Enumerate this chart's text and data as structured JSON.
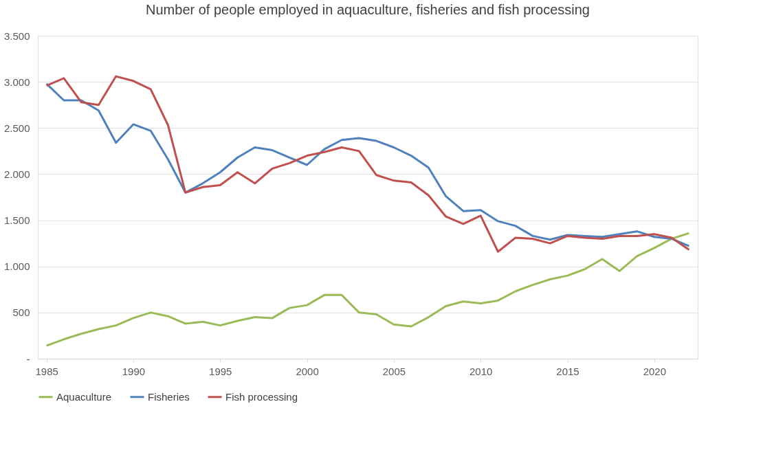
{
  "chart_data": {
    "type": "line",
    "title": "Number of people employed in aquaculture, fisheries and fish processing",
    "x": [
      1985,
      1986,
      1987,
      1988,
      1989,
      1990,
      1991,
      1992,
      1993,
      1994,
      1995,
      1996,
      1997,
      1998,
      1999,
      2000,
      2001,
      2002,
      2003,
      2004,
      2005,
      2006,
      2007,
      2008,
      2009,
      2010,
      2011,
      2012,
      2013,
      2014,
      2015,
      2016,
      2017,
      2018,
      2019,
      2020,
      2021,
      2022
    ],
    "series": [
      {
        "name": "Aquaculture",
        "color": "#9bbb59",
        "values": [
          140,
          210,
          270,
          320,
          360,
          440,
          500,
          460,
          380,
          400,
          360,
          410,
          450,
          440,
          550,
          580,
          690,
          690,
          500,
          480,
          370,
          350,
          450,
          570,
          620,
          600,
          630,
          730,
          800,
          860,
          900,
          970,
          1080,
          950,
          1110,
          1200,
          1300,
          1360
        ]
      },
      {
        "name": "Fisheries",
        "color": "#4f81bd",
        "values": [
          2980,
          2800,
          2800,
          2690,
          2340,
          2540,
          2470,
          2160,
          1800,
          1900,
          2020,
          2180,
          2290,
          2260,
          2180,
          2100,
          2270,
          2370,
          2390,
          2360,
          2290,
          2200,
          2070,
          1760,
          1600,
          1610,
          1490,
          1440,
          1330,
          1290,
          1340,
          1330,
          1320,
          1350,
          1380,
          1320,
          1300,
          1220
        ]
      },
      {
        "name": "Fish processing",
        "color": "#c0504d",
        "values": [
          2960,
          3040,
          2780,
          2750,
          3060,
          3010,
          2920,
          2530,
          1800,
          1860,
          1880,
          2020,
          1900,
          2060,
          2120,
          2200,
          2240,
          2290,
          2250,
          1990,
          1930,
          1910,
          1770,
          1540,
          1460,
          1550,
          1160,
          1310,
          1300,
          1250,
          1330,
          1310,
          1300,
          1330,
          1330,
          1350,
          1310,
          1180
        ]
      }
    ],
    "xlim": [
      1984.5,
      2022.5
    ],
    "xticks": [
      1985,
      1990,
      1995,
      2000,
      2005,
      2010,
      2015,
      2020
    ],
    "ylim": [
      0,
      3500
    ],
    "yticks": [
      {
        "value": 0,
        "label": "-"
      },
      {
        "value": 500,
        "label": "500"
      },
      {
        "value": 1000,
        "label": "1.000"
      },
      {
        "value": 1500,
        "label": "1.500"
      },
      {
        "value": 2000,
        "label": "2.000"
      },
      {
        "value": 2500,
        "label": "2.500"
      },
      {
        "value": 3000,
        "label": "3.000"
      },
      {
        "value": 3500,
        "label": "3.500"
      }
    ],
    "grid": "y",
    "legend": "bottom",
    "marker": "none",
    "line_style": "solid"
  }
}
